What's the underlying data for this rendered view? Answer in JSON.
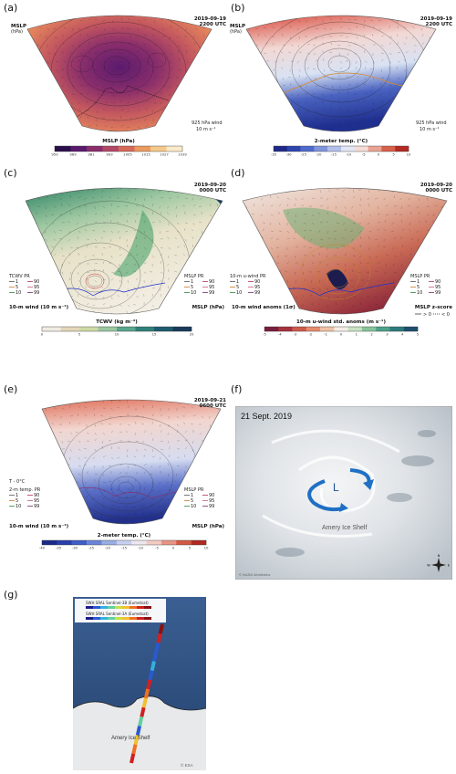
{
  "labels": [
    "(a)",
    "(b)",
    "(c)",
    "(d)",
    "(e)",
    "(f)",
    "(g)"
  ],
  "panel_a": {
    "mslp_title": "MSLP",
    "mslp_unit": "(hPa)",
    "date": "2019-09-19",
    "time": "2200 UTC",
    "wind": "925 hPa wind",
    "wind_scale": "10 m s⁻¹",
    "cbar_title": "MSLP (hPa)",
    "cbar_ticks": [
      "959",
      "969",
      "981",
      "993",
      "1005",
      "1015",
      "1027",
      "1039"
    ],
    "colors": [
      "#2b0f4c",
      "#5a1a6e",
      "#8a2e6c",
      "#b34766",
      "#d66a58",
      "#ec9a5f",
      "#f6c98a",
      "#fbe9c8"
    ]
  },
  "panel_b": {
    "mslp_title": "MSLP",
    "mslp_unit": "(hPa)",
    "date": "2019-09-19",
    "time": "2200 UTC",
    "wind": "925 hPa wind",
    "wind_scale": "10 m s⁻¹",
    "cbar_title": "2-meter temp. (°C)",
    "cbar_ticks": [
      "-35",
      "-30",
      "-25",
      "-20",
      "-15",
      "-10",
      "-5",
      "0",
      "5",
      "10"
    ]
  },
  "panel_c": {
    "date": "2019-09-20",
    "time": "0000 UTC",
    "legend_left_title": "TCWV PR",
    "legend_left": [
      "1",
      "5",
      "10",
      "90",
      "95",
      "99"
    ],
    "legend_right_title": "MSLP PR",
    "legend_right": [
      "1",
      "5",
      "10",
      "90",
      "95",
      "99"
    ],
    "wind": "10-m wind (10 m s⁻¹)",
    "mslp": "MSLP (hPa)",
    "cbar_title": "TCWV (kg m⁻²)",
    "cbar_ticks": [
      "0",
      "5",
      "10",
      "15",
      "20"
    ]
  },
  "panel_d": {
    "date": "2019-09-20",
    "time": "0000 UTC",
    "legend_left_title": "10-m u-wind PR",
    "legend_left": [
      "1",
      "5",
      "10",
      "90",
      "95",
      "99"
    ],
    "legend_right_title": "MSLP PR",
    "legend_right": [
      "1",
      "5",
      "10",
      "90",
      "95",
      "99"
    ],
    "wind": "10-m wind anoms (1σ)",
    "mslp": "MSLP z-score",
    "mslp_pos": "> 0",
    "mslp_neg": "< 0",
    "cbar_title": "10-m u-wind std. anoms (m s⁻¹)",
    "cbar_ticks": [
      "-5",
      "-4",
      "-3",
      "-2",
      "-1",
      "0",
      "1",
      "2",
      "3",
      "4",
      "5"
    ]
  },
  "panel_e": {
    "date": "2019-09-21",
    "time": "0600 UTC",
    "iso": "T - 0°C",
    "legend_left_title": "2-m temp. PR",
    "legend_left": [
      "1",
      "5",
      "10",
      "90",
      "95",
      "99"
    ],
    "legend_right_title": "MSLP PR",
    "legend_right": [
      "1",
      "5",
      "10",
      "90",
      "95",
      "99"
    ],
    "wind": "10-m wind (10 m s⁻¹)",
    "mslp": "MSLP (hPa)",
    "cbar_title": "2-meter temp. (°C)",
    "cbar_ticks": [
      "-40",
      "-35",
      "-30",
      "-25",
      "-20",
      "-15",
      "-10",
      "-5",
      "0",
      "5",
      "10"
    ]
  },
  "panel_f": {
    "date": "21 Sept. 2019",
    "low": "L",
    "place": "Amery Ice Shelf",
    "credit": "© NASA Worldview"
  },
  "panel_g": {
    "row1": "SWH SRAL Sentinel-3B (Eumetsat)",
    "row2": "SWH SRAL Sentinel-3A (Eumetsat)",
    "place": "Amery Ice Shelf",
    "credit": "© ESA"
  }
}
